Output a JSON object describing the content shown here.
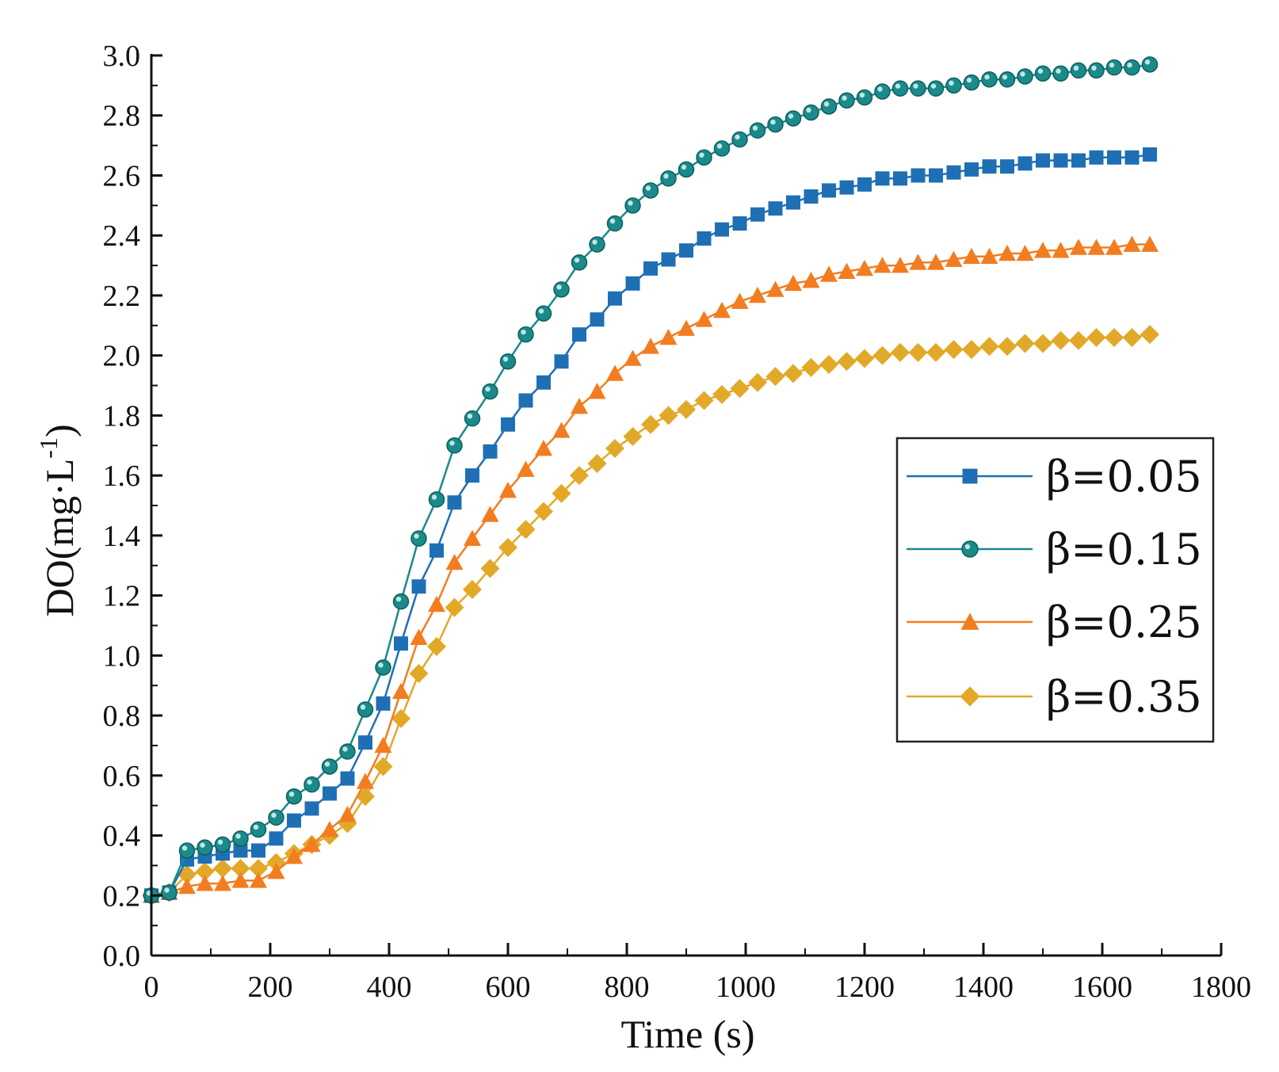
{
  "chart_data": {
    "type": "line",
    "title": "",
    "xlabel": "Time (s)",
    "ylabel": "DO(mg·L-1)",
    "ylabel_base": "DO(mg·L",
    "ylabel_sup": "-1",
    "ylabel_close": ")",
    "xlim": [
      0,
      1800
    ],
    "ylim": [
      0.0,
      3.0
    ],
    "xticks": [
      "0",
      "200",
      "400",
      "600",
      "800",
      "1000",
      "1200",
      "1400",
      "1600",
      "1800"
    ],
    "yticks": [
      "0.0",
      "0.2",
      "0.4",
      "0.6",
      "0.8",
      "1.0",
      "1.2",
      "1.4",
      "1.6",
      "1.8",
      "2.0",
      "2.2",
      "2.4",
      "2.6",
      "2.8",
      "3.0"
    ],
    "grid": false,
    "legend_position": "right",
    "x": [
      0,
      30,
      60,
      90,
      120,
      150,
      180,
      210,
      240,
      270,
      300,
      330,
      360,
      390,
      420,
      450,
      480,
      510,
      540,
      570,
      600,
      630,
      660,
      690,
      720,
      750,
      780,
      810,
      840,
      870,
      900,
      930,
      960,
      990,
      1020,
      1050,
      1080,
      1110,
      1140,
      1170,
      1200,
      1230,
      1260,
      1290,
      1320,
      1350,
      1380,
      1410,
      1440,
      1470,
      1500,
      1530,
      1560,
      1590,
      1620,
      1650,
      1680
    ],
    "series": [
      {
        "name": "β=0.05",
        "color": "#1f6fb5",
        "marker": "square",
        "values": [
          0.2,
          0.21,
          0.32,
          0.33,
          0.34,
          0.35,
          0.35,
          0.39,
          0.45,
          0.49,
          0.54,
          0.59,
          0.71,
          0.84,
          1.04,
          1.23,
          1.35,
          1.51,
          1.6,
          1.68,
          1.77,
          1.85,
          1.91,
          1.98,
          2.07,
          2.12,
          2.19,
          2.24,
          2.29,
          2.32,
          2.35,
          2.39,
          2.42,
          2.44,
          2.47,
          2.49,
          2.51,
          2.53,
          2.55,
          2.56,
          2.57,
          2.59,
          2.59,
          2.6,
          2.6,
          2.61,
          2.62,
          2.63,
          2.63,
          2.64,
          2.65,
          2.65,
          2.65,
          2.66,
          2.66,
          2.66,
          2.67
        ]
      },
      {
        "name": "β=0.15",
        "color": "#1b8a8a",
        "marker": "circle",
        "values": [
          0.2,
          0.21,
          0.35,
          0.36,
          0.37,
          0.39,
          0.42,
          0.46,
          0.53,
          0.57,
          0.63,
          0.68,
          0.82,
          0.96,
          1.18,
          1.39,
          1.52,
          1.7,
          1.79,
          1.88,
          1.98,
          2.07,
          2.14,
          2.22,
          2.31,
          2.37,
          2.44,
          2.5,
          2.55,
          2.59,
          2.62,
          2.66,
          2.69,
          2.72,
          2.75,
          2.77,
          2.79,
          2.81,
          2.83,
          2.85,
          2.86,
          2.88,
          2.89,
          2.89,
          2.89,
          2.9,
          2.91,
          2.92,
          2.92,
          2.93,
          2.94,
          2.94,
          2.95,
          2.95,
          2.96,
          2.96,
          2.97
        ]
      },
      {
        "name": "β=0.25",
        "color": "#f27d20",
        "marker": "triangle",
        "values": [
          0.2,
          0.21,
          0.23,
          0.24,
          0.24,
          0.25,
          0.25,
          0.28,
          0.33,
          0.37,
          0.42,
          0.47,
          0.58,
          0.7,
          0.88,
          1.06,
          1.17,
          1.31,
          1.39,
          1.47,
          1.55,
          1.62,
          1.69,
          1.75,
          1.83,
          1.88,
          1.94,
          1.99,
          2.03,
          2.06,
          2.09,
          2.12,
          2.15,
          2.18,
          2.2,
          2.22,
          2.24,
          2.25,
          2.27,
          2.28,
          2.29,
          2.3,
          2.3,
          2.31,
          2.31,
          2.32,
          2.33,
          2.33,
          2.34,
          2.34,
          2.35,
          2.35,
          2.36,
          2.36,
          2.36,
          2.37,
          2.37
        ]
      },
      {
        "name": "β=0.35",
        "color": "#e2a928",
        "marker": "diamond",
        "values": [
          0.2,
          0.21,
          0.27,
          0.28,
          0.29,
          0.29,
          0.29,
          0.31,
          0.34,
          0.37,
          0.4,
          0.44,
          0.53,
          0.63,
          0.79,
          0.94,
          1.03,
          1.16,
          1.22,
          1.29,
          1.36,
          1.42,
          1.48,
          1.54,
          1.6,
          1.64,
          1.69,
          1.73,
          1.77,
          1.8,
          1.82,
          1.85,
          1.87,
          1.89,
          1.91,
          1.93,
          1.94,
          1.96,
          1.97,
          1.98,
          1.99,
          2.0,
          2.01,
          2.01,
          2.01,
          2.02,
          2.02,
          2.03,
          2.03,
          2.04,
          2.04,
          2.05,
          2.05,
          2.06,
          2.06,
          2.06,
          2.07
        ]
      }
    ]
  }
}
